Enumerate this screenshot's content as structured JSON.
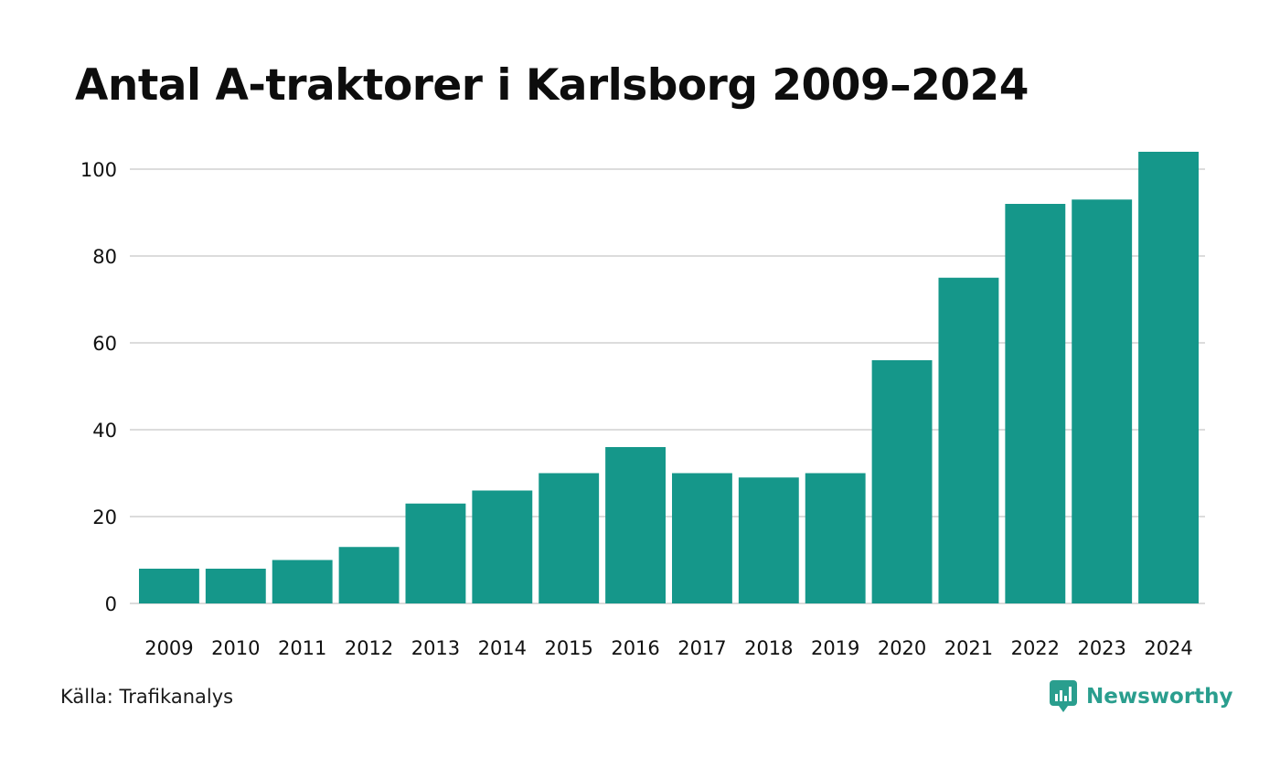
{
  "colors": {
    "bar": "#15978a",
    "grid": "#dcdcdc",
    "text": "#111111",
    "brand": "#2a9e8e"
  },
  "source": "Källa: Trafikanalys",
  "brand": {
    "name": "Newsworthy",
    "icon": "newsworthy-logo-icon"
  },
  "chart_data": {
    "type": "bar",
    "title": "Antal A-traktorer i Karlsborg 2009–2024",
    "xlabel": "",
    "ylabel": "",
    "categories": [
      "2009",
      "2010",
      "2011",
      "2012",
      "2013",
      "2014",
      "2015",
      "2016",
      "2017",
      "2018",
      "2019",
      "2020",
      "2021",
      "2022",
      "2023",
      "2024"
    ],
    "values": [
      8,
      8,
      10,
      13,
      23,
      26,
      30,
      36,
      30,
      29,
      30,
      56,
      75,
      92,
      93,
      104
    ],
    "ylim": [
      0,
      104
    ],
    "yticks": [
      0,
      20,
      40,
      60,
      80,
      100
    ],
    "grid": true,
    "legend": "none"
  }
}
